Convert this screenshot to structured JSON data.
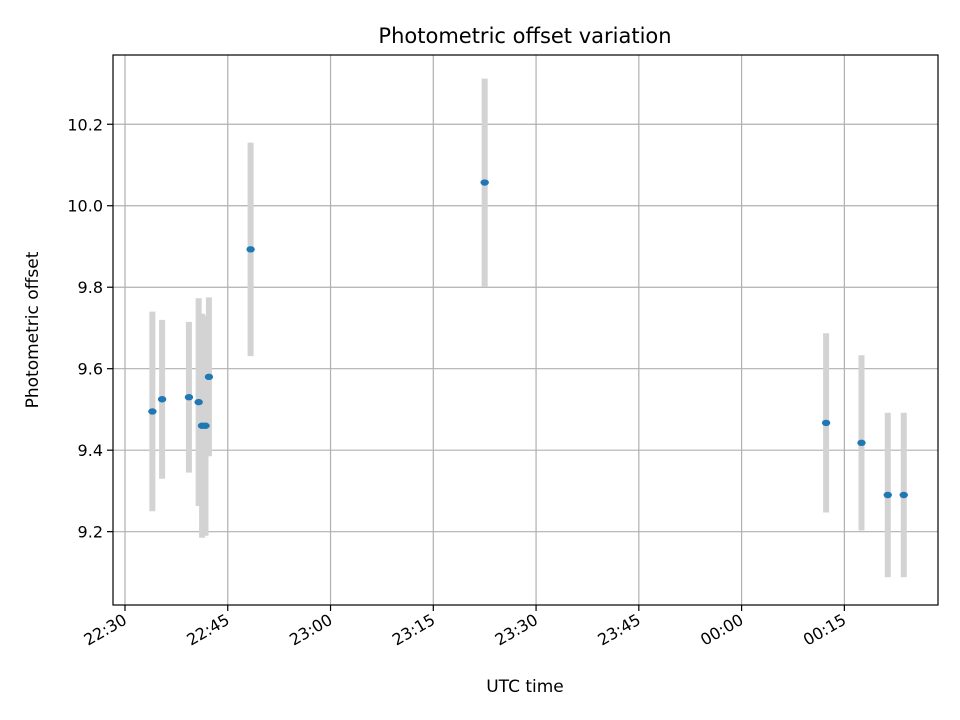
{
  "chart_data": {
    "type": "scatter",
    "title": "Photometric offset variation",
    "xlabel": "UTC time",
    "ylabel": "Photometric offset",
    "x_ticks": [
      {
        "time": "22:30",
        "label": "22:30"
      },
      {
        "time": "22:45",
        "label": "22:45"
      },
      {
        "time": "23:00",
        "label": "23:00"
      },
      {
        "time": "23:15",
        "label": "23:15"
      },
      {
        "time": "23:30",
        "label": "23:30"
      },
      {
        "time": "23:45",
        "label": "23:45"
      },
      {
        "time": "24:00",
        "label": "00:00"
      },
      {
        "time": "24:15",
        "label": "00:15"
      }
    ],
    "y_ticks": [
      9.2,
      9.4,
      9.6,
      9.8,
      10.0,
      10.2
    ],
    "xlim": [
      "22:28:15",
      "24:28:40"
    ],
    "ylim": [
      9.02,
      10.37
    ],
    "grid": true,
    "marker_color": "#1f77b4",
    "errorbar_color": "#d3d3d3",
    "points": [
      {
        "time": "22:34:00",
        "y": 9.495,
        "err": 0.245
      },
      {
        "time": "22:35:25",
        "y": 9.525,
        "err": 0.195
      },
      {
        "time": "22:39:20",
        "y": 9.53,
        "err": 0.185
      },
      {
        "time": "22:40:45",
        "y": 9.518,
        "err": 0.255
      },
      {
        "time": "22:41:15",
        "y": 9.46,
        "err": 0.275
      },
      {
        "time": "22:41:45",
        "y": 9.46,
        "err": 0.27
      },
      {
        "time": "22:42:15",
        "y": 9.58,
        "err": 0.195
      },
      {
        "time": "22:48:20",
        "y": 9.893,
        "err": 0.262
      },
      {
        "time": "23:22:30",
        "y": 10.057,
        "err": 0.255
      },
      {
        "time": "24:12:20",
        "y": 9.467,
        "err": 0.22
      },
      {
        "time": "24:17:30",
        "y": 9.418,
        "err": 0.215
      },
      {
        "time": "24:21:20",
        "y": 9.29,
        "err": 0.202
      },
      {
        "time": "24:23:40",
        "y": 9.29,
        "err": 0.202
      }
    ]
  }
}
